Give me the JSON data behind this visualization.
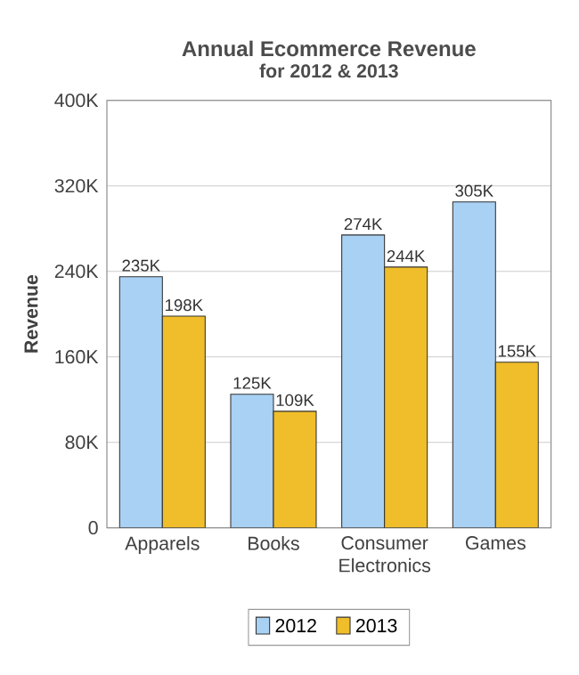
{
  "chart_data": {
    "type": "bar",
    "title": "Annual Ecommerce Revenue",
    "subtitle": "for 2012 & 2013",
    "ylabel": "Revenue",
    "categories": [
      "Apparels",
      "Books",
      "Consumer Electronics",
      "Games"
    ],
    "series": [
      {
        "name": "2012",
        "color": "#a9d1f3",
        "values": [
          235000,
          125000,
          274000,
          305000
        ],
        "value_labels": [
          "235K",
          "125K",
          "274K",
          "305K"
        ]
      },
      {
        "name": "2013",
        "color": "#f0be2a",
        "values": [
          198000,
          109000,
          244000,
          155000
        ],
        "value_labels": [
          "198K",
          "109K",
          "244K",
          "155K"
        ]
      }
    ],
    "ylim": [
      0,
      400000
    ],
    "yticks": [
      0,
      {
        "value": 80000,
        "label": "80K"
      },
      {
        "value": 160000,
        "label": "160K"
      },
      {
        "value": 240000,
        "label": "240K"
      },
      {
        "value": 320000,
        "label": "320K"
      },
      {
        "value": 400000,
        "label": "400K"
      }
    ],
    "grid": "y",
    "legend": "bottom"
  }
}
